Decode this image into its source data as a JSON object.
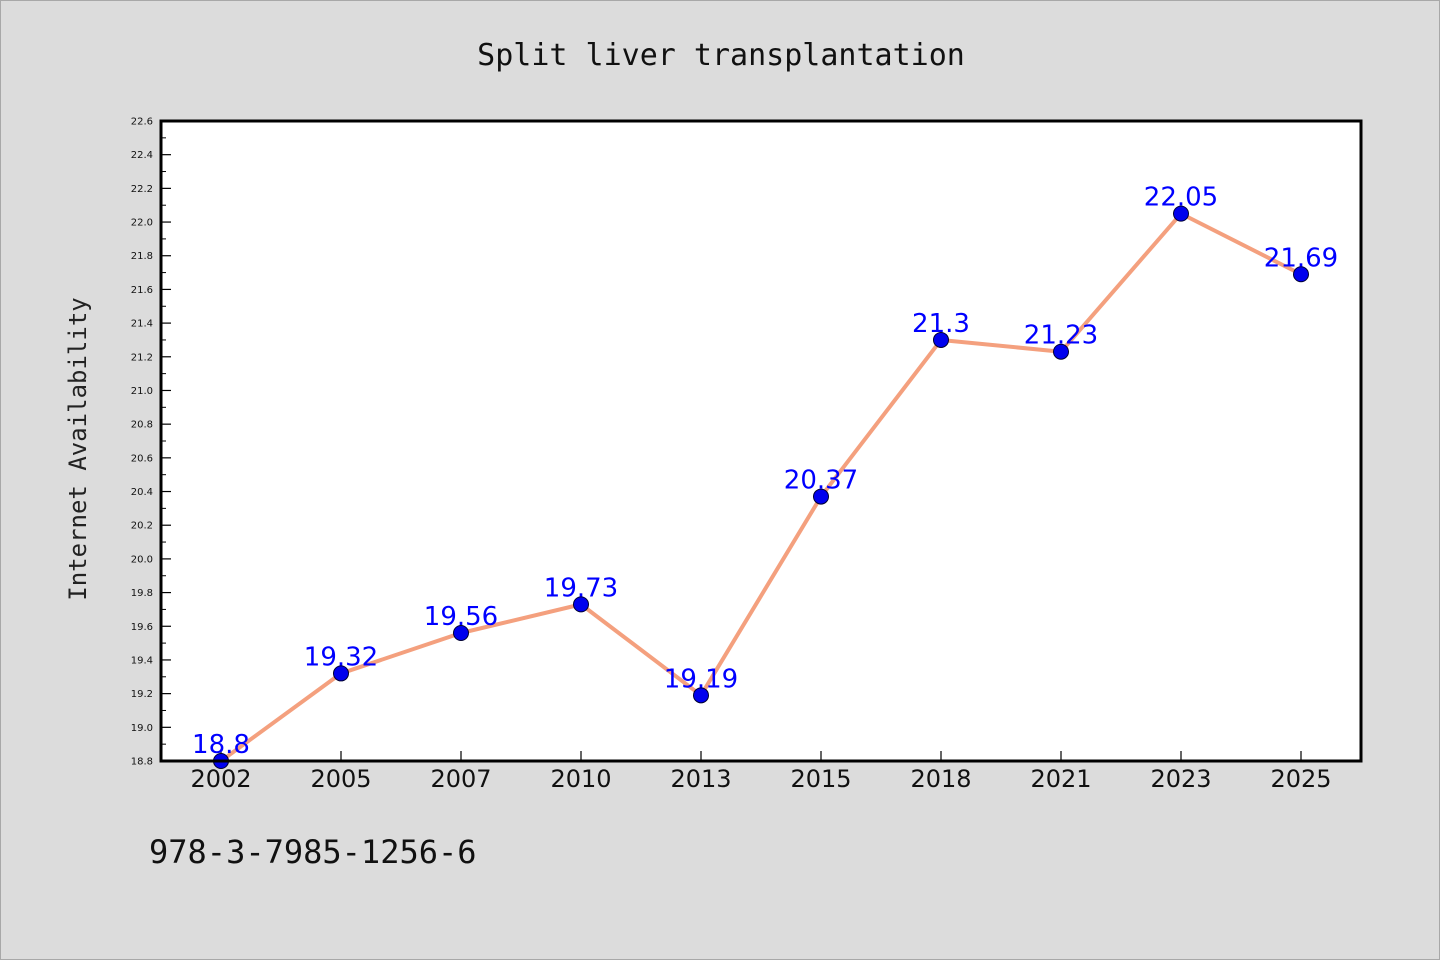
{
  "footer_text": "978-3-7985-1256-6",
  "colors": {
    "background": "#dcdcdc",
    "plot_background": "#ffffff",
    "line": "#f4a07e",
    "marker": "#0000ee",
    "label": "#0000ff"
  },
  "chart_data": {
    "type": "line",
    "title": "Split liver transplantation",
    "xlabel": "",
    "ylabel": "Internet Availability",
    "categories": [
      "2002",
      "2005",
      "2007",
      "2010",
      "2013",
      "2015",
      "2018",
      "2021",
      "2023",
      "2025"
    ],
    "series": [
      {
        "values": [
          18.8,
          19.32,
          19.56,
          19.73,
          19.19,
          20.37,
          21.3,
          21.23,
          22.05,
          21.69
        ],
        "labels": [
          "18.8",
          "19.32",
          "19.56",
          "19.73",
          "19.19",
          "20.37",
          "21.3",
          "21.23",
          "22.05",
          "21.69"
        ]
      }
    ],
    "ylim": [
      18.8,
      22.6
    ],
    "yticks": [
      "18.8",
      "19.0",
      "19.2",
      "19.4",
      "19.6",
      "19.8",
      "20.0",
      "20.2",
      "20.4",
      "20.6",
      "20.8",
      "21.0",
      "21.2",
      "21.4",
      "21.6",
      "21.8",
      "22.0",
      "22.2",
      "22.4",
      "22.6"
    ],
    "grid": false,
    "legend": "none",
    "markers": "circle",
    "data_labels": true
  }
}
